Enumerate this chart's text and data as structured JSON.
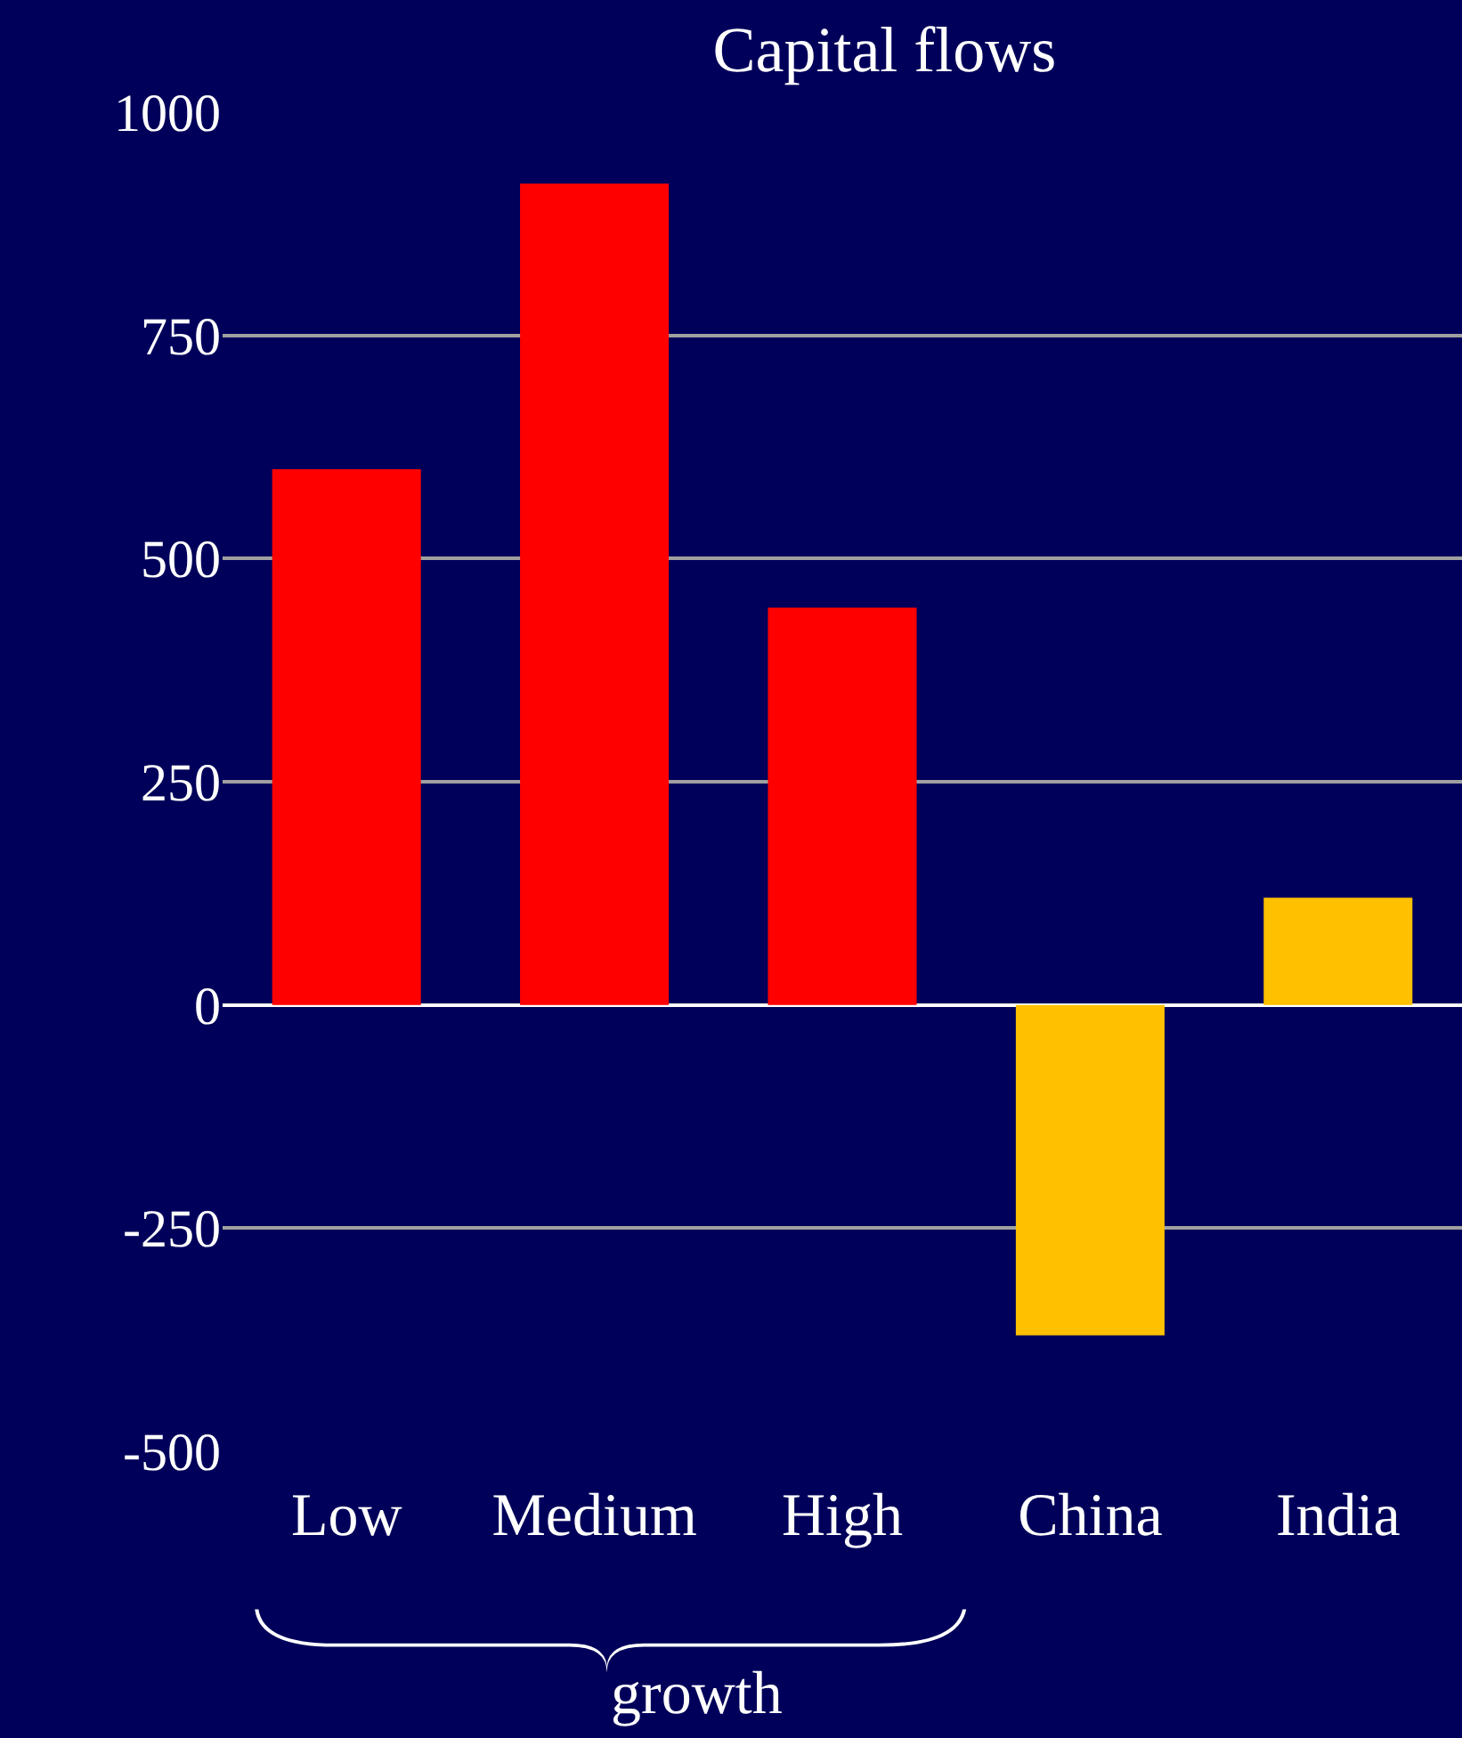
{
  "chart_data": {
    "type": "bar",
    "title": "Capital flows",
    "categories": [
      "Low",
      "Medium",
      "High",
      "China",
      "India"
    ],
    "values": [
      600,
      920,
      445,
      -370,
      120
    ],
    "colors": [
      "#ff0000",
      "#ff0000",
      "#ff0000",
      "#ffc000",
      "#ffc000"
    ],
    "ylim": [
      -500,
      1000
    ],
    "yticks": [
      -500,
      -250,
      0,
      250,
      500,
      750,
      1000
    ],
    "grid": "y",
    "annotations": [
      "growth"
    ]
  }
}
